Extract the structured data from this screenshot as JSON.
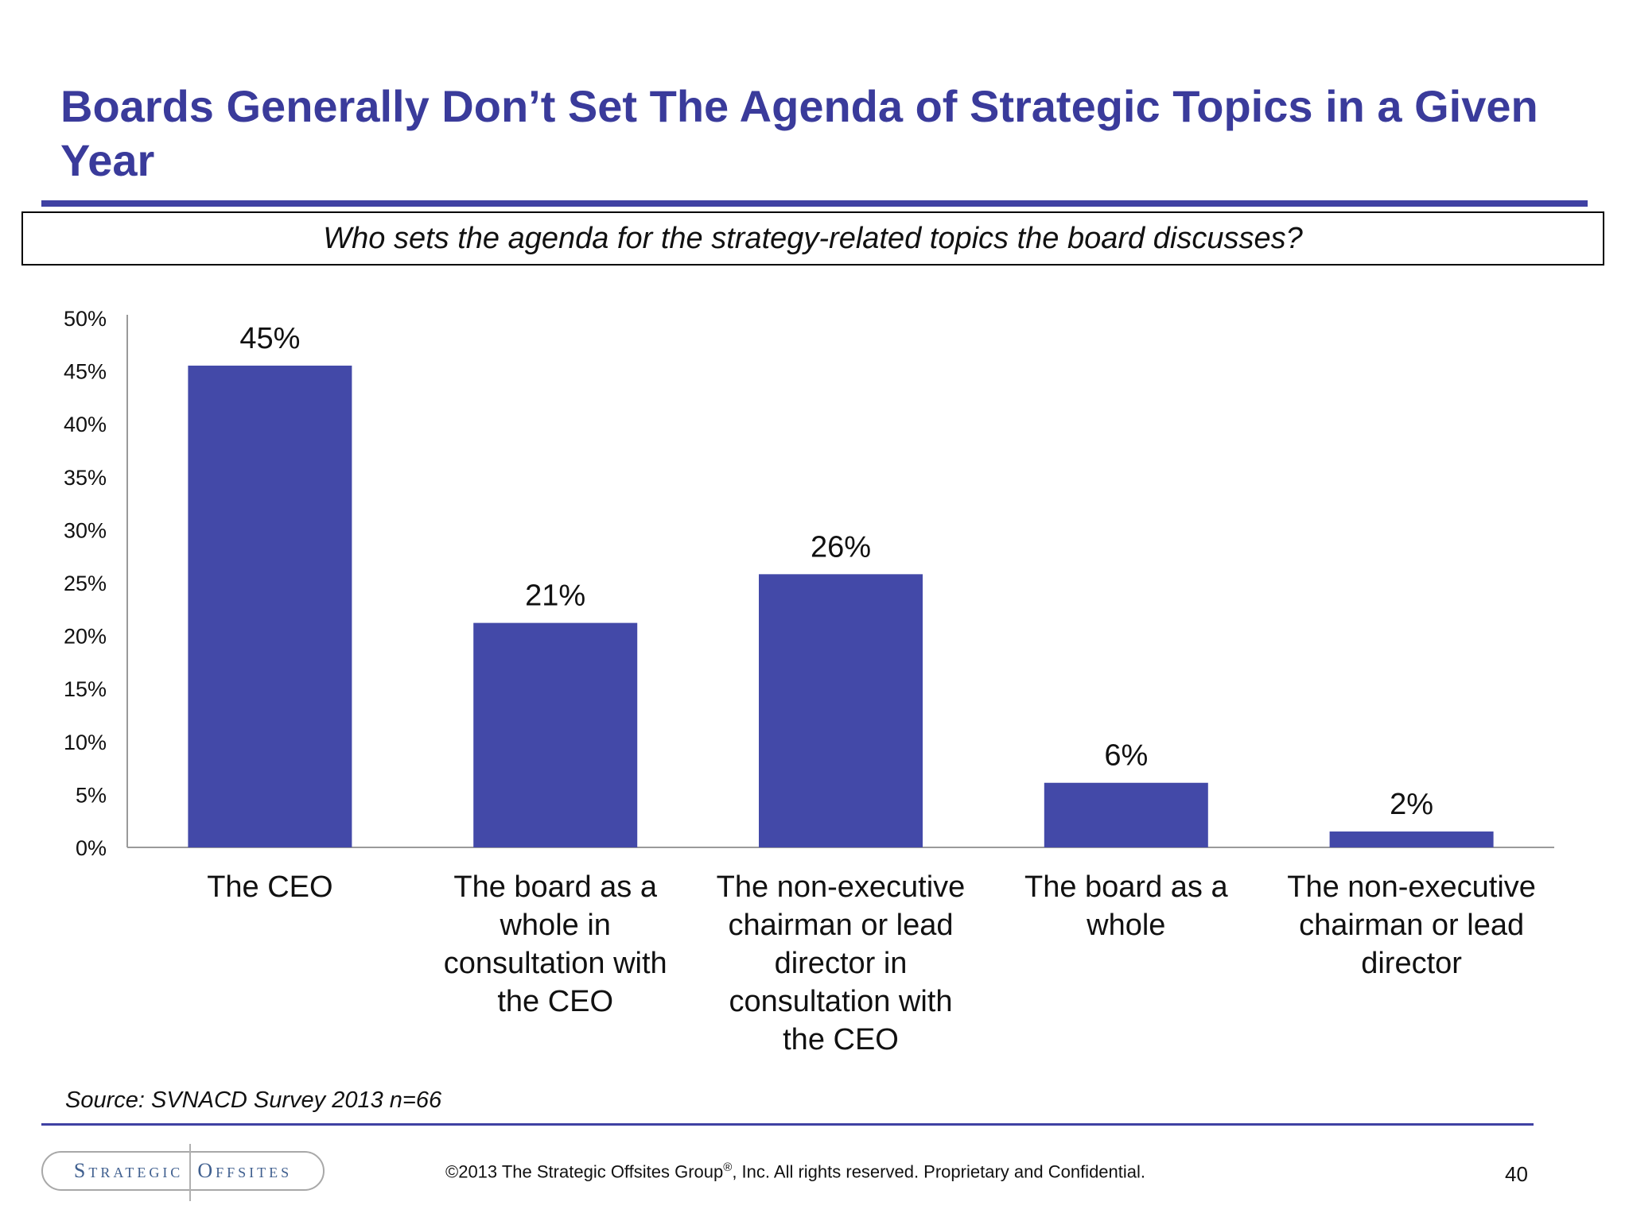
{
  "slide": {
    "title": "Boards Generally Don’t Set The Agenda of Strategic Topics in a Given Year",
    "question": "Who sets the agenda for the strategy-related topics the board discusses?",
    "source": "Source:  SVNACD Survey 2013 n=66",
    "logo_left": "Strategic",
    "logo_right": "Offsites",
    "copyright_main": "©2013 The Strategic Offsites Group",
    "copyright_mark": "®",
    "copyright_rest": ", Inc.  All rights reserved. Proprietary and Confidential.",
    "page_number": "40"
  },
  "colors": {
    "accent": "#3a3b9b",
    "bar": "#4349a8"
  },
  "chart_data": {
    "type": "bar",
    "title": "",
    "xlabel": "",
    "ylabel": "",
    "ylim": [
      0,
      50
    ],
    "yticks": [
      "0%",
      "5%",
      "10%",
      "15%",
      "20%",
      "25%",
      "30%",
      "35%",
      "40%",
      "45%",
      "50%"
    ],
    "grid": false,
    "legend": "none",
    "categories": [
      [
        "The CEO"
      ],
      [
        "The board as a",
        "whole in",
        "consultation with",
        "the CEO"
      ],
      [
        "The non-executive",
        "chairman or lead",
        "director in",
        "consultation with",
        "the CEO"
      ],
      [
        "The board as a",
        "whole"
      ],
      [
        "The non-executive",
        "chairman or lead",
        "director"
      ]
    ],
    "values": [
      45.5,
      21.2,
      25.8,
      6.1,
      1.5
    ],
    "data_labels": [
      "45%",
      "21%",
      "26%",
      "6%",
      "2%"
    ]
  }
}
